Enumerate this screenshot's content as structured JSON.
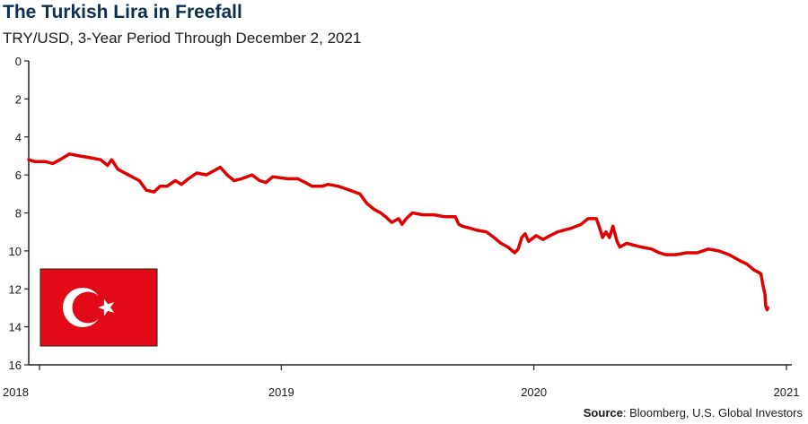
{
  "header": {
    "title": "The Turkish Lira in Freefall",
    "subtitle": "TRY/USD, 3-Year Period Through December 2, 2021"
  },
  "source": {
    "label": "Source",
    "text": ": Bloomberg, U.S. Global Investors"
  },
  "flag": {
    "name": "Turkey flag",
    "background_color": "#e30a17",
    "symbol_color": "#ffffff"
  },
  "colors": {
    "line": "#e00000",
    "axis": "#222222",
    "title": "#0d2f52"
  },
  "chart_data": {
    "type": "line",
    "title": "The Turkish Lira in Freefall",
    "subtitle": "TRY/USD, 3-Year Period Through December 2, 2021",
    "xlabel": "",
    "ylabel": "",
    "y_inverted": true,
    "ylim": [
      0,
      16
    ],
    "xlim": [
      "2018-01-01",
      "2021-01-01"
    ],
    "x_ticks": [
      "2018",
      "2019",
      "2020",
      "2021"
    ],
    "y_ticks": [
      0,
      2,
      4,
      6,
      8,
      10,
      12,
      14,
      16
    ],
    "grid": false,
    "series": [
      {
        "name": "",
        "points": [
          [
            "2018-01-01",
            5.2
          ],
          [
            "2018-01-10",
            5.3
          ],
          [
            "2018-01-25",
            5.3
          ],
          [
            "2018-02-05",
            5.4
          ],
          [
            "2018-02-15",
            5.2
          ],
          [
            "2018-03-01",
            4.9
          ],
          [
            "2018-03-15",
            5.0
          ],
          [
            "2018-04-01",
            5.1
          ],
          [
            "2018-04-15",
            5.2
          ],
          [
            "2018-04-25",
            5.5
          ],
          [
            "2018-05-01",
            5.2
          ],
          [
            "2018-05-10",
            5.7
          ],
          [
            "2018-05-25",
            6.0
          ],
          [
            "2018-06-10",
            6.3
          ],
          [
            "2018-06-20",
            6.8
          ],
          [
            "2018-07-01",
            6.9
          ],
          [
            "2018-07-10",
            6.6
          ],
          [
            "2018-07-20",
            6.6
          ],
          [
            "2018-08-01",
            6.3
          ],
          [
            "2018-08-10",
            6.5
          ],
          [
            "2018-08-20",
            6.2
          ],
          [
            "2018-09-01",
            5.9
          ],
          [
            "2018-09-15",
            6.0
          ],
          [
            "2018-09-25",
            5.8
          ],
          [
            "2018-10-05",
            5.6
          ],
          [
            "2018-10-15",
            6.0
          ],
          [
            "2018-10-25",
            6.3
          ],
          [
            "2018-11-05",
            6.2
          ],
          [
            "2018-11-20",
            6.0
          ],
          [
            "2018-12-01",
            6.3
          ],
          [
            "2018-12-10",
            6.4
          ],
          [
            "2018-12-20",
            6.1
          ],
          [
            "2019-01-10",
            6.2
          ],
          [
            "2019-01-25",
            6.2
          ],
          [
            "2019-02-05",
            6.4
          ],
          [
            "2019-02-15",
            6.6
          ],
          [
            "2019-03-01",
            6.6
          ],
          [
            "2019-03-10",
            6.5
          ],
          [
            "2019-03-25",
            6.6
          ],
          [
            "2019-04-10",
            6.8
          ],
          [
            "2019-04-25",
            7.0
          ],
          [
            "2019-05-05",
            7.5
          ],
          [
            "2019-05-15",
            7.8
          ],
          [
            "2019-05-25",
            8.0
          ],
          [
            "2019-06-01",
            8.2
          ],
          [
            "2019-06-10",
            8.5
          ],
          [
            "2019-06-20",
            8.3
          ],
          [
            "2019-06-25",
            8.6
          ],
          [
            "2019-07-01",
            8.3
          ],
          [
            "2019-07-10",
            8.0
          ],
          [
            "2019-07-25",
            8.1
          ],
          [
            "2019-08-10",
            8.1
          ],
          [
            "2019-08-25",
            8.2
          ],
          [
            "2019-09-10",
            8.2
          ],
          [
            "2019-09-15",
            8.6
          ],
          [
            "2019-09-20",
            8.7
          ],
          [
            "2019-10-01",
            8.8
          ],
          [
            "2019-10-10",
            8.9
          ],
          [
            "2019-10-25",
            9.0
          ],
          [
            "2019-11-05",
            9.3
          ],
          [
            "2019-11-15",
            9.6
          ],
          [
            "2019-11-25",
            9.8
          ],
          [
            "2019-12-05",
            10.1
          ],
          [
            "2019-12-10",
            9.9
          ],
          [
            "2019-12-15",
            9.3
          ],
          [
            "2019-12-20",
            9.1
          ],
          [
            "2019-12-25",
            9.5
          ],
          [
            "2020-01-05",
            9.2
          ],
          [
            "2020-01-15",
            9.4
          ],
          [
            "2020-01-25",
            9.2
          ],
          [
            "2020-02-05",
            9.0
          ],
          [
            "2020-02-15",
            8.9
          ],
          [
            "2020-02-25",
            8.8
          ],
          [
            "2020-03-10",
            8.6
          ],
          [
            "2020-03-20",
            8.3
          ],
          [
            "2020-04-01",
            8.3
          ],
          [
            "2020-04-05",
            8.7
          ],
          [
            "2020-04-10",
            9.3
          ],
          [
            "2020-04-15",
            9.0
          ],
          [
            "2020-04-20",
            9.3
          ],
          [
            "2020-04-25",
            8.7
          ],
          [
            "2020-05-01",
            9.5
          ],
          [
            "2020-05-05",
            9.8
          ],
          [
            "2020-05-15",
            9.6
          ],
          [
            "2020-05-25",
            9.7
          ],
          [
            "2020-06-05",
            9.8
          ],
          [
            "2020-06-20",
            9.9
          ],
          [
            "2020-07-01",
            10.1
          ],
          [
            "2020-07-10",
            10.2
          ],
          [
            "2020-07-25",
            10.2
          ],
          [
            "2020-08-10",
            10.1
          ],
          [
            "2020-08-25",
            10.1
          ],
          [
            "2020-09-10",
            9.9
          ],
          [
            "2020-09-25",
            10.0
          ],
          [
            "2020-10-10",
            10.2
          ],
          [
            "2020-10-25",
            10.5
          ],
          [
            "2020-11-05",
            10.7
          ],
          [
            "2020-11-15",
            11.0
          ],
          [
            "2020-11-25",
            11.2
          ],
          [
            "2020-11-28",
            11.8
          ],
          [
            "2020-12-01",
            12.3
          ],
          [
            "2020-12-02",
            12.9
          ],
          [
            "2020-12-04",
            13.1
          ],
          [
            "2020-12-05",
            13.0
          ]
        ]
      }
    ]
  }
}
